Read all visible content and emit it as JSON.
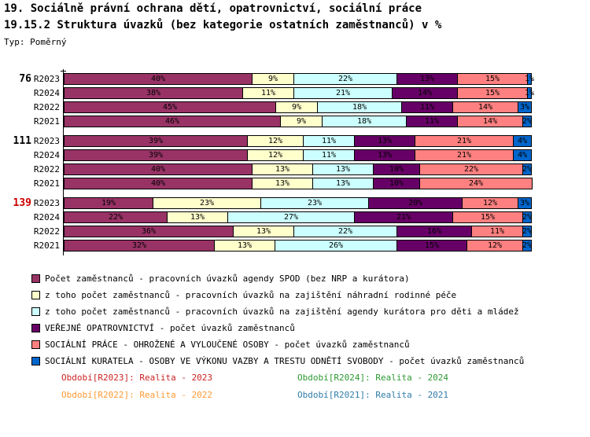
{
  "header": {
    "title_line1": "19. Sociálně právní ochrana dětí, opatrovnictví, sociální práce",
    "title_line2": "19.15.2 Struktura úvazků (bez kategorie ostatních zaměstnanců) v %",
    "type_label": "Typ: Poměrný"
  },
  "colors": {
    "series": [
      "#993366",
      "#FFFFCC",
      "#CCFFFF",
      "#660066",
      "#FF8080",
      "#0066CC"
    ],
    "group_label_default": "#000000",
    "group_label_highlight": "#CC0000",
    "bar_border": "#000000"
  },
  "chart_data": {
    "type": "bar",
    "stacked": true,
    "orientation": "horizontal",
    "unit": "%",
    "xlim": [
      0,
      100
    ],
    "value_suffix": "%",
    "series_names": [
      "Počet zaměstnanců - pracovních úvazků agendy SPOD (bez NRP a kurátora)",
      "z toho počet zaměstnanců - pracovních úvazků na zajištění náhradní rodinné péče",
      "z toho počet zaměstnanců - pracovních úvazků na zajištění agendy kurátora pro děti a mládež",
      "VEŘEJNÉ OPATROVNICTVÍ - počet úvazků zaměstnanců",
      "SOCIÁLNÍ PRÁCE - OHROŽENÉ A VYLOUČENÉ OSOBY - počet úvazků zaměstnanců",
      "SOCIÁLNÍ KURATELA - OSOBY VE VÝKONU VAZBY A TRESTU ODNĚTÍ SVOBODY - počet úvazků zaměstnanců"
    ],
    "groups": [
      {
        "label": "76",
        "highlight": false,
        "rows": [
          {
            "period": "R2023",
            "values": [
              40,
              9,
              22,
              13,
              15,
              1
            ]
          },
          {
            "period": "R2024",
            "values": [
              38,
              11,
              21,
              14,
              15,
              1
            ]
          },
          {
            "period": "R2022",
            "values": [
              45,
              9,
              18,
              11,
              14,
              3
            ]
          },
          {
            "period": "R2021",
            "values": [
              46,
              9,
              18,
              11,
              14,
              2
            ]
          }
        ]
      },
      {
        "label": "111",
        "highlight": false,
        "rows": [
          {
            "period": "R2023",
            "values": [
              39,
              12,
              11,
              13,
              21,
              4
            ]
          },
          {
            "period": "R2024",
            "values": [
              39,
              12,
              11,
              13,
              21,
              4
            ]
          },
          {
            "period": "R2022",
            "values": [
              40,
              13,
              13,
              10,
              22,
              2
            ]
          },
          {
            "period": "R2021",
            "values": [
              40,
              13,
              13,
              10,
              24,
              0
            ]
          }
        ]
      },
      {
        "label": "139",
        "highlight": true,
        "rows": [
          {
            "period": "R2023",
            "values": [
              19,
              23,
              23,
              20,
              12,
              3
            ]
          },
          {
            "period": "R2024",
            "values": [
              22,
              13,
              27,
              21,
              15,
              2
            ]
          },
          {
            "period": "R2022",
            "values": [
              36,
              13,
              22,
              16,
              11,
              2
            ]
          },
          {
            "period": "R2021",
            "values": [
              32,
              13,
              26,
              15,
              12,
              2
            ]
          }
        ]
      }
    ]
  },
  "legend": {
    "items": [
      {
        "label": "Počet zaměstnanců - pracovních úvazků agendy SPOD (bez NRP a kurátora)",
        "color": "#993366"
      },
      {
        "label": "z toho počet zaměstnanců - pracovních úvazků na zajištění náhradní rodinné péče",
        "color": "#FFFFCC"
      },
      {
        "label": "z toho počet zaměstnanců - pracovních úvazků na zajištění agendy kurátora pro děti a mládež",
        "color": "#CCFFFF"
      },
      {
        "label": "VEŘEJNÉ OPATROVNICTVÍ - počet úvazků zaměstnanců",
        "color": "#660066"
      },
      {
        "label": "SOCIÁLNÍ PRÁCE - OHROŽENÉ A VYLOUČENÉ OSOBY - počet úvazků zaměstnanců",
        "color": "#FF8080"
      },
      {
        "label": "SOCIÁLNÍ KURATELA - OSOBY VE VÝKONU VAZBY A TRESTU ODNĚTÍ SVOBODY - počet úvazků zaměstnanců",
        "color": "#0066CC"
      }
    ]
  },
  "footer": {
    "items": [
      {
        "label": "Období[R2023]: Realita - 2023",
        "color": "#CC2222"
      },
      {
        "label": "Období[R2024]: Realita - 2024",
        "color": "#2E9933"
      },
      {
        "label": "Období[R2022]: Realita - 2022",
        "color": "#FF9933"
      },
      {
        "label": "Období[R2021]: Realita - 2021",
        "color": "#2E7CA8"
      }
    ]
  }
}
